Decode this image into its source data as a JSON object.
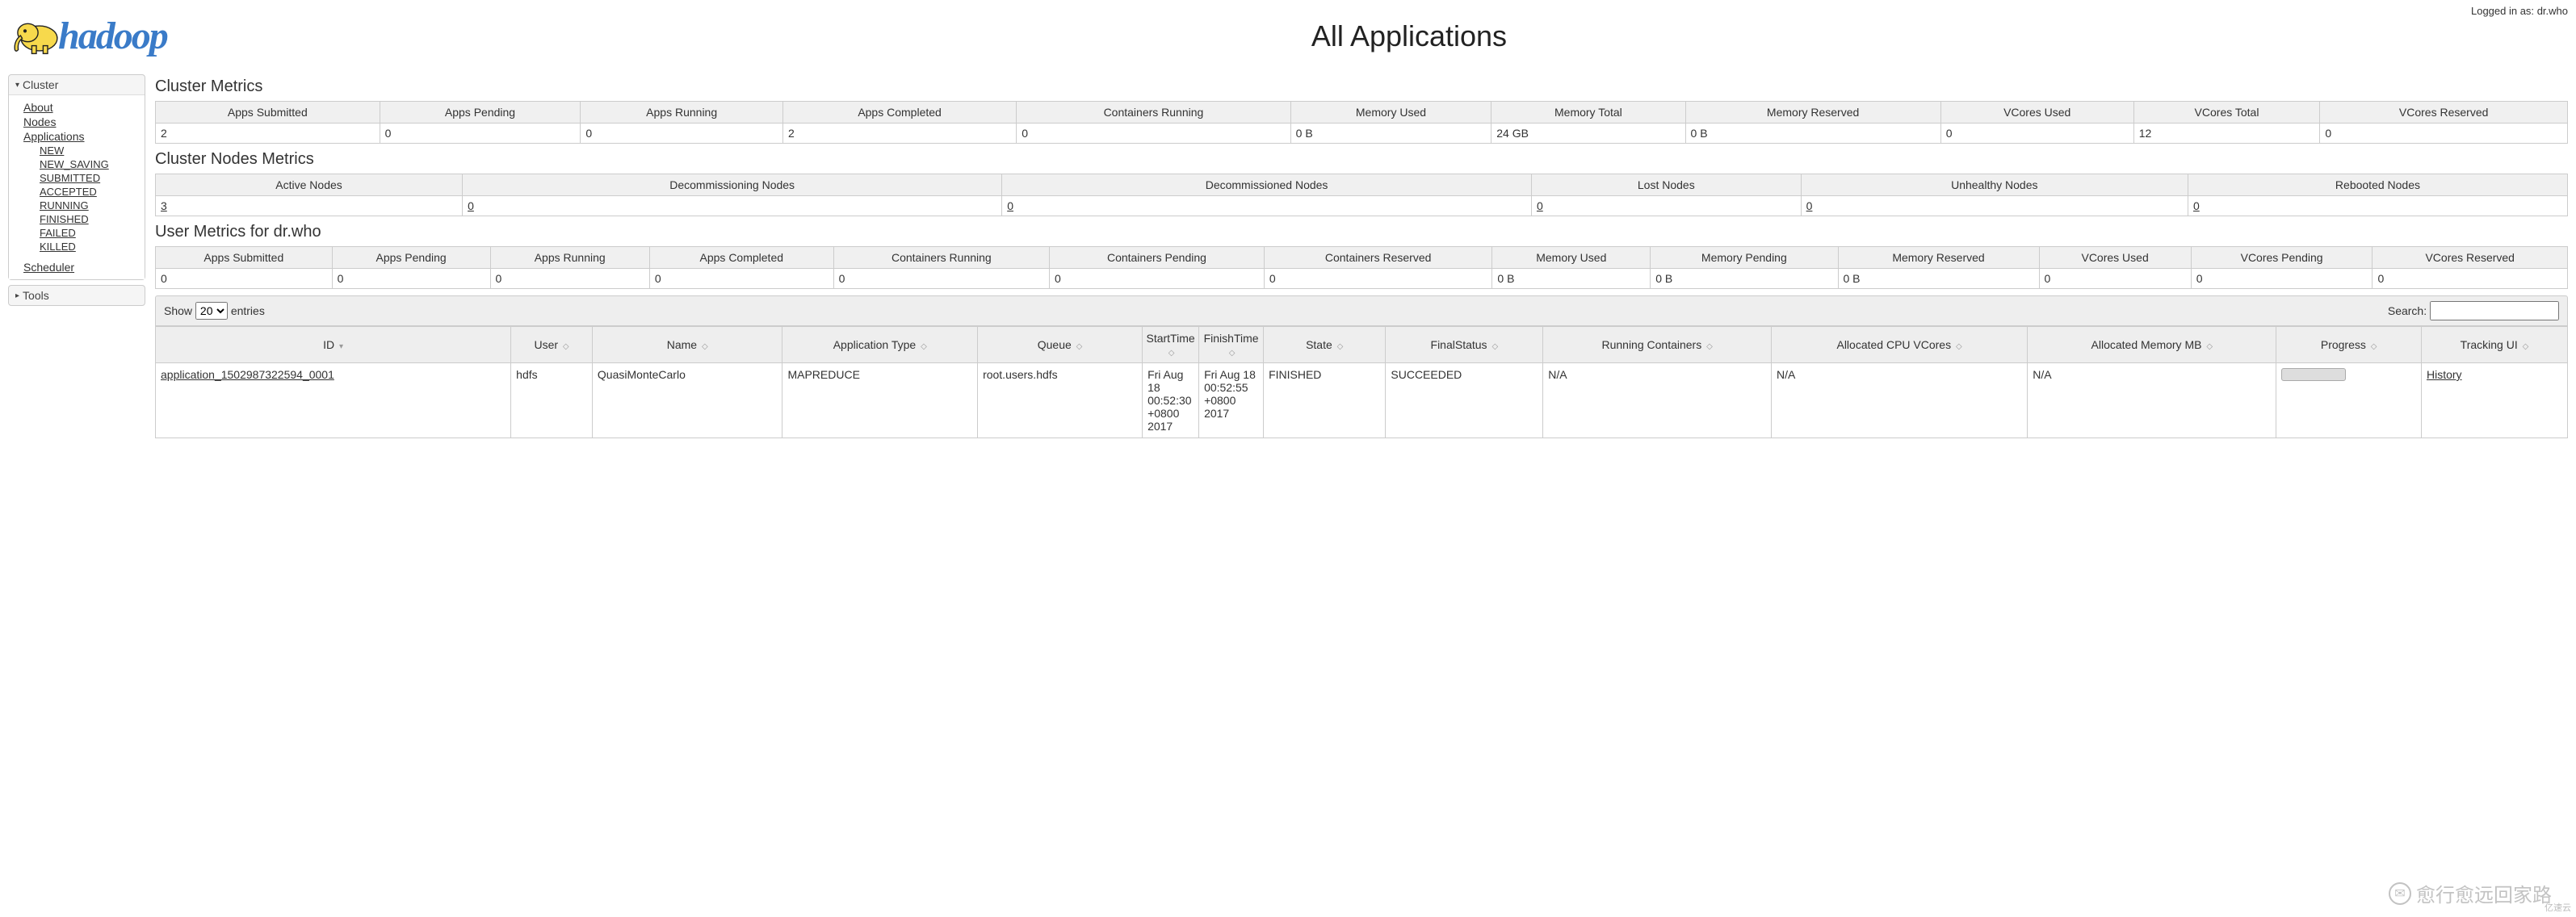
{
  "login": {
    "label": "Logged in as:",
    "user": "dr.who"
  },
  "logo": {
    "text": "hadoop",
    "elephant_fill": "#f7d94c",
    "elephant_stroke": "#222",
    "text_color": "#3a7bc8"
  },
  "page_title": "All Applications",
  "sidebar": {
    "cluster": {
      "label": "Cluster",
      "links": {
        "about": "About",
        "nodes": "Nodes",
        "applications": "Applications"
      },
      "app_states": [
        "NEW",
        "NEW_SAVING",
        "SUBMITTED",
        "ACCEPTED",
        "RUNNING",
        "FINISHED",
        "FAILED",
        "KILLED"
      ],
      "scheduler": "Scheduler"
    },
    "tools": {
      "label": "Tools"
    }
  },
  "cluster_metrics": {
    "title": "Cluster Metrics",
    "headers": [
      "Apps Submitted",
      "Apps Pending",
      "Apps Running",
      "Apps Completed",
      "Containers Running",
      "Memory Used",
      "Memory Total",
      "Memory Reserved",
      "VCores Used",
      "VCores Total",
      "VCores Reserved"
    ],
    "values": [
      "2",
      "0",
      "0",
      "2",
      "0",
      "0 B",
      "24 GB",
      "0 B",
      "0",
      "12",
      "0"
    ]
  },
  "nodes_metrics": {
    "title": "Cluster Nodes Metrics",
    "headers": [
      "Active Nodes",
      "Decommissioning Nodes",
      "Decommissioned Nodes",
      "Lost Nodes",
      "Unhealthy Nodes",
      "Rebooted Nodes"
    ],
    "values": [
      "3",
      "0",
      "0",
      "0",
      "0",
      "0"
    ]
  },
  "user_metrics": {
    "title": "User Metrics for dr.who",
    "headers": [
      "Apps Submitted",
      "Apps Pending",
      "Apps Running",
      "Apps Completed",
      "Containers Running",
      "Containers Pending",
      "Containers Reserved",
      "Memory Used",
      "Memory Pending",
      "Memory Reserved",
      "VCores Used",
      "VCores Pending",
      "VCores Reserved"
    ],
    "values": [
      "0",
      "0",
      "0",
      "0",
      "0",
      "0",
      "0",
      "0 B",
      "0 B",
      "0 B",
      "0",
      "0",
      "0"
    ]
  },
  "datatable": {
    "show_label": "Show",
    "entries_label": "entries",
    "page_size": "20",
    "search_label": "Search:",
    "headers": [
      "ID",
      "User",
      "Name",
      "Application Type",
      "Queue",
      "StartTime",
      "FinishTime",
      "State",
      "FinalStatus",
      "Running Containers",
      "Allocated CPU VCores",
      "Allocated Memory MB",
      "Progress",
      "Tracking UI"
    ],
    "row": {
      "id": "application_1502987322594_0001",
      "user": "hdfs",
      "name": "QuasiMonteCarlo",
      "type": "MAPREDUCE",
      "queue": "root.users.hdfs",
      "start": "Fri Aug 18 00:52:30 +0800 2017",
      "finish": "Fri Aug 18 00:52:55 +0800 2017",
      "state": "FINISHED",
      "final": "SUCCEEDED",
      "running_containers": "N/A",
      "cpu": "N/A",
      "mem": "N/A",
      "tracking": "History"
    }
  },
  "watermark": "愈行愈远回家路",
  "corner": "亿速云"
}
